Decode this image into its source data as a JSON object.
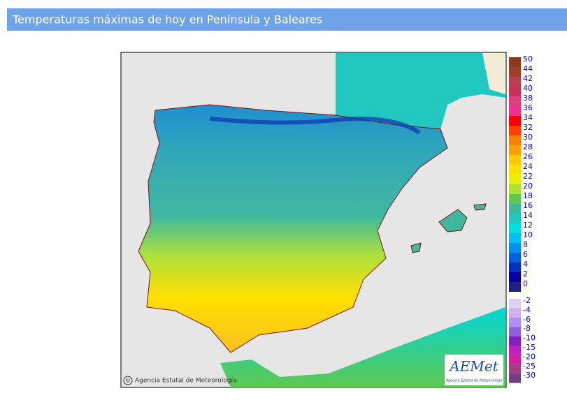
{
  "header": {
    "title": "Temperaturas máximas de hoy en Península y Baleares"
  },
  "map": {
    "credit_symbol": "©",
    "credit": "Agencia Estatal de Meteorología",
    "logo": {
      "name": "AEMet",
      "subtitle": "Agencia Estatal de Meteorología"
    }
  },
  "legend": {
    "upper": {
      "values": [
        50,
        44,
        42,
        40,
        38,
        36,
        34,
        32,
        30,
        28,
        26,
        24,
        22,
        20,
        18,
        16,
        14,
        12,
        10,
        8,
        6,
        4,
        2,
        0
      ],
      "colors": [
        "#8b3a1a",
        "#a0402a",
        "#b84050",
        "#c8305a",
        "#e0407a",
        "#f03090",
        "#ff0000",
        "#ff4000",
        "#ff8000",
        "#ffa000",
        "#ffc800",
        "#ffe000",
        "#e8f000",
        "#b0e030",
        "#60c850",
        "#40b8a0",
        "#20c8c0",
        "#00e0e0",
        "#00c0f0",
        "#0090f0",
        "#0060e0",
        "#0030c0",
        "#0000a0",
        "#202080"
      ]
    },
    "lower": {
      "values": [
        -2,
        -4,
        -6,
        -8,
        -10,
        -15,
        -20,
        -25,
        -30
      ],
      "colors": [
        "#e0d0f0",
        "#d0b0f0",
        "#b090f0",
        "#9060e0",
        "#8020c0",
        "#c020c0",
        "#d020a0",
        "#a04080",
        "#704080"
      ]
    }
  }
}
